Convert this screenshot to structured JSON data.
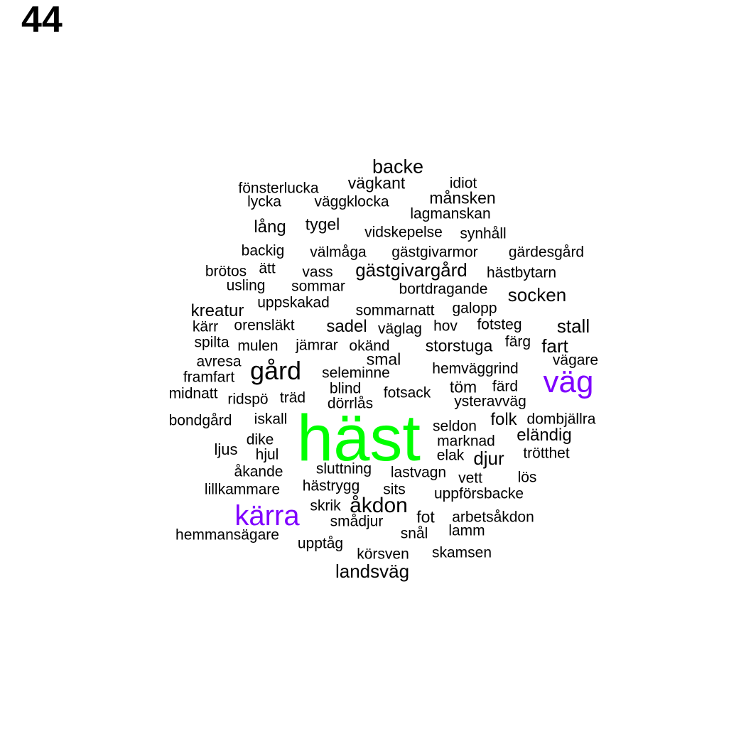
{
  "title": "44",
  "colors": {
    "default": "#000000",
    "highlight": "#7f00ff",
    "center": "#00ff00"
  },
  "words": [
    {
      "text": "häst",
      "color": "center"
    },
    {
      "text": "väg",
      "color": "highlight"
    },
    {
      "text": "kärra",
      "color": "highlight"
    },
    {
      "text": "gård"
    },
    {
      "text": "åkdon"
    },
    {
      "text": "backe"
    },
    {
      "text": "vägkant"
    },
    {
      "text": "idiot"
    },
    {
      "text": "fönsterlucka"
    },
    {
      "text": "månsken"
    },
    {
      "text": "lycka"
    },
    {
      "text": "väggklocka"
    },
    {
      "text": "lagmanskan"
    },
    {
      "text": "lång"
    },
    {
      "text": "tygel"
    },
    {
      "text": "vidskepelse"
    },
    {
      "text": "synhåll"
    },
    {
      "text": "backig"
    },
    {
      "text": "välmåga"
    },
    {
      "text": "gästgivarmor"
    },
    {
      "text": "gärdesgård"
    },
    {
      "text": "brötos"
    },
    {
      "text": "ätt"
    },
    {
      "text": "vass"
    },
    {
      "text": "gästgivargård"
    },
    {
      "text": "hästbytarn"
    },
    {
      "text": "usling"
    },
    {
      "text": "sommar"
    },
    {
      "text": "bortdragande"
    },
    {
      "text": "socken"
    },
    {
      "text": "uppskakad"
    },
    {
      "text": "kreatur"
    },
    {
      "text": "sommarnatt"
    },
    {
      "text": "galopp"
    },
    {
      "text": "kärr"
    },
    {
      "text": "orensläkt"
    },
    {
      "text": "sadel"
    },
    {
      "text": "väglag"
    },
    {
      "text": "hov"
    },
    {
      "text": "fotsteg"
    },
    {
      "text": "stall"
    },
    {
      "text": "spilta"
    },
    {
      "text": "mulen"
    },
    {
      "text": "jämrar"
    },
    {
      "text": "okänd"
    },
    {
      "text": "storstuga"
    },
    {
      "text": "färg"
    },
    {
      "text": "fart"
    },
    {
      "text": "avresa"
    },
    {
      "text": "smal"
    },
    {
      "text": "vägare"
    },
    {
      "text": "framfart"
    },
    {
      "text": "seleminne"
    },
    {
      "text": "hemväggrind"
    },
    {
      "text": "midnatt"
    },
    {
      "text": "blind"
    },
    {
      "text": "töm"
    },
    {
      "text": "färd"
    },
    {
      "text": "ridspö"
    },
    {
      "text": "träd"
    },
    {
      "text": "fotsack"
    },
    {
      "text": "dörrlås"
    },
    {
      "text": "ysteravväg"
    },
    {
      "text": "bondgård"
    },
    {
      "text": "iskall"
    },
    {
      "text": "folk"
    },
    {
      "text": "dombjällra"
    },
    {
      "text": "seldon"
    },
    {
      "text": "eländig"
    },
    {
      "text": "dike"
    },
    {
      "text": "marknad"
    },
    {
      "text": "ljus"
    },
    {
      "text": "hjul"
    },
    {
      "text": "elak"
    },
    {
      "text": "djur"
    },
    {
      "text": "trötthet"
    },
    {
      "text": "sluttning"
    },
    {
      "text": "åkande"
    },
    {
      "text": "lastvagn"
    },
    {
      "text": "vett"
    },
    {
      "text": "lös"
    },
    {
      "text": "lillkammare"
    },
    {
      "text": "hästrygg"
    },
    {
      "text": "sits"
    },
    {
      "text": "uppförsbacke"
    },
    {
      "text": "skrik"
    },
    {
      "text": "fot"
    },
    {
      "text": "arbetsåkdon"
    },
    {
      "text": "smådjur"
    },
    {
      "text": "lamm"
    },
    {
      "text": "hemmansägare"
    },
    {
      "text": "snål"
    },
    {
      "text": "upptåg"
    },
    {
      "text": "körsven"
    },
    {
      "text": "skamsen"
    },
    {
      "text": "landsväg"
    }
  ]
}
